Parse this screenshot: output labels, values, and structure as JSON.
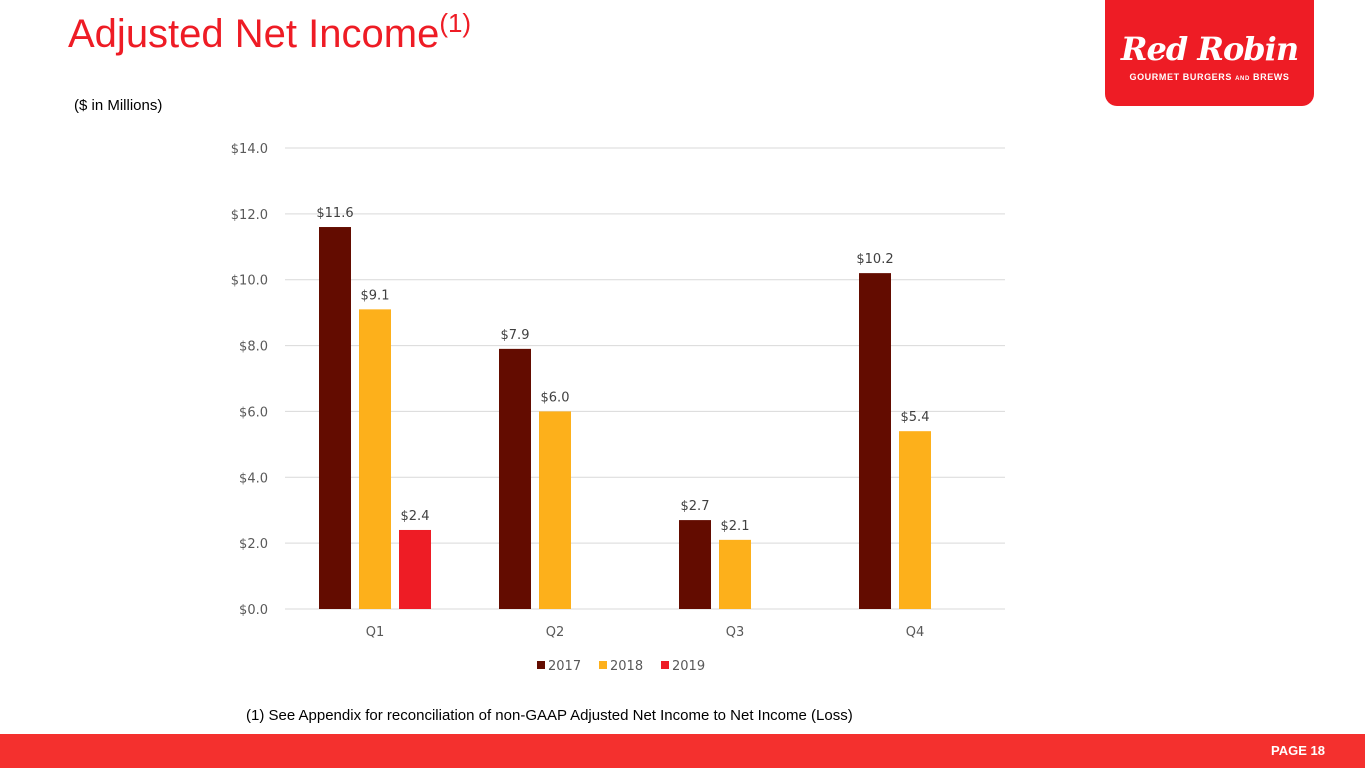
{
  "header": {
    "title": "Adjusted Net Income",
    "title_superscript": "(1)",
    "subtitle": "($ in Millions)"
  },
  "logo": {
    "name": "Red Robin",
    "tagline": "GOURMET BURGERS AND BREWS"
  },
  "footnote": "(1) See Appendix for reconciliation of non-GAAP Adjusted Net Income to Net Income (Loss)",
  "footer": {
    "page": "PAGE 18"
  },
  "chart_data": {
    "type": "bar",
    "title": "",
    "categories": [
      "Q1",
      "Q2",
      "Q3",
      "Q4"
    ],
    "series": [
      {
        "name": "2017",
        "color": "#630c00",
        "values": [
          11.6,
          7.9,
          2.7,
          10.2
        ],
        "labels": [
          "$11.6",
          "$7.9",
          "$2.7",
          "$10.2"
        ]
      },
      {
        "name": "2018",
        "color": "#fdb01b",
        "values": [
          9.1,
          6.0,
          2.1,
          5.4
        ],
        "labels": [
          "$9.1",
          "$6.0",
          "$2.1",
          "$5.4"
        ]
      },
      {
        "name": "2019",
        "color": "#ee1c25",
        "values": [
          2.4,
          null,
          null,
          null
        ],
        "labels": [
          "$2.4",
          null,
          null,
          null
        ]
      }
    ],
    "ylim": [
      0,
      14
    ],
    "yticks": [
      0,
      2,
      4,
      6,
      8,
      10,
      12,
      14
    ],
    "ytick_labels": [
      "$0.0",
      "$2.0",
      "$4.0",
      "$6.0",
      "$8.0",
      "$10.0",
      "$12.0",
      "$14.0"
    ],
    "grid": true,
    "legend": "bottom",
    "xlabel": "",
    "ylabel": ""
  }
}
